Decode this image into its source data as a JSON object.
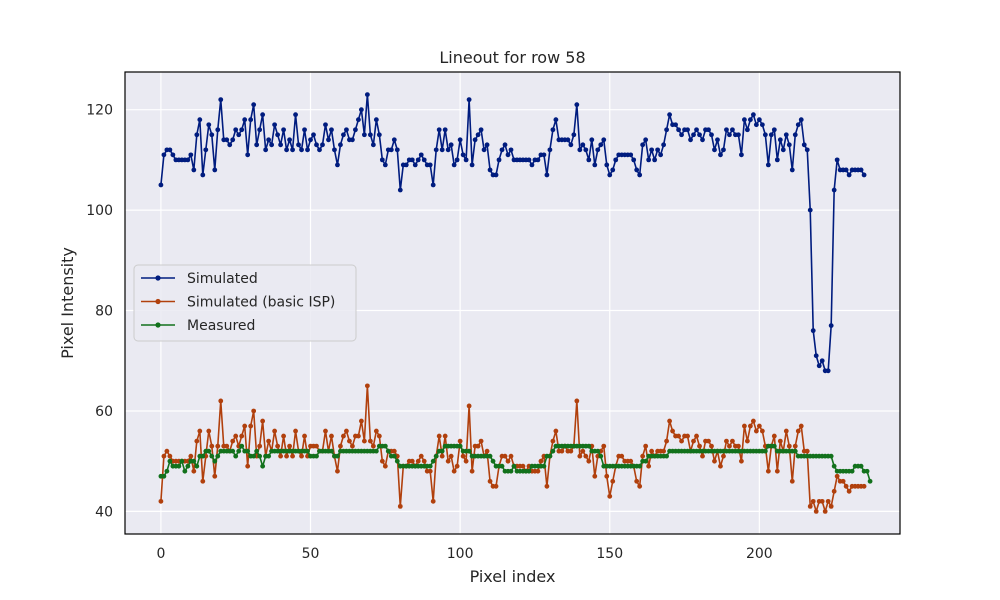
{
  "chart_data": {
    "type": "line",
    "title": "Lineout for row 58",
    "xlabel": "Pixel index",
    "ylabel": "Pixel Intensity",
    "xlim": [
      -12,
      247
    ],
    "ylim": [
      35.5,
      127.5
    ],
    "xticks": [
      0,
      50,
      100,
      150,
      200
    ],
    "yticks": [
      40,
      60,
      80,
      100,
      120
    ],
    "grid": true,
    "legend_position": "center-left",
    "series": [
      {
        "name": "Simulated",
        "color": "#001c7f",
        "values": [
          105,
          111,
          112,
          112,
          111,
          110,
          110,
          110,
          110,
          110,
          111,
          108,
          115,
          118,
          107,
          112,
          117,
          115,
          108,
          116,
          122,
          114,
          114,
          113,
          114,
          116,
          115,
          116,
          118,
          111,
          118,
          121,
          113,
          116,
          119,
          112,
          114,
          113,
          117,
          115,
          113,
          116,
          112,
          114,
          112,
          119,
          113,
          112,
          116,
          112,
          114,
          115,
          113,
          112,
          113,
          117,
          114,
          116,
          112,
          109,
          113,
          115,
          116,
          114,
          114,
          116,
          118,
          120,
          115,
          123,
          115,
          113,
          118,
          115,
          110,
          109,
          112,
          112,
          114,
          112,
          104,
          109,
          109,
          110,
          110,
          109,
          110,
          111,
          110,
          109,
          109,
          105,
          112,
          116,
          112,
          116,
          112,
          113,
          109,
          110,
          114,
          111,
          110,
          122,
          109,
          114,
          115,
          116,
          112,
          113,
          108,
          107,
          107,
          110,
          112,
          113,
          111,
          112,
          110,
          110,
          110,
          110,
          110,
          110,
          109,
          110,
          110,
          111,
          111,
          107,
          112,
          116,
          118,
          114,
          114,
          114,
          114,
          113,
          115,
          121,
          112,
          113,
          112,
          110,
          114,
          109,
          112,
          113,
          114,
          109,
          107,
          108,
          110,
          111,
          111,
          111,
          111,
          111,
          110,
          108,
          107,
          113,
          114,
          110,
          112,
          110,
          112,
          111,
          113,
          116,
          119,
          117,
          117,
          116,
          115,
          116,
          116,
          114,
          115,
          116,
          115,
          114,
          116,
          116,
          115,
          112,
          114,
          111,
          112,
          116,
          115,
          116,
          115,
          115,
          111,
          118,
          116,
          118,
          119,
          117,
          118,
          117,
          115,
          109,
          115,
          116,
          110,
          114,
          112,
          115,
          113,
          108,
          115,
          117,
          118,
          113,
          112,
          100,
          76,
          71,
          69,
          70,
          68,
          68,
          77,
          104,
          110,
          108,
          108,
          108,
          107,
          108,
          108,
          108,
          108,
          107
        ],
        "x_start": 0
      },
      {
        "name": "Simulated (basic ISP)",
        "color": "#b1400d",
        "values": [
          42,
          51,
          52,
          51,
          50,
          50,
          50,
          50,
          50,
          50,
          51,
          48,
          54,
          56,
          46,
          51,
          56,
          53,
          47,
          53,
          62,
          53,
          53,
          52,
          54,
          55,
          53,
          55,
          57,
          49,
          57,
          60,
          51,
          53,
          58,
          51,
          54,
          52,
          56,
          53,
          51,
          55,
          51,
          53,
          51,
          56,
          52,
          51,
          55,
          51,
          53,
          53,
          53,
          52,
          52,
          56,
          52,
          55,
          51,
          48,
          53,
          55,
          56,
          54,
          53,
          55,
          55,
          58,
          54,
          65,
          54,
          53,
          56,
          55,
          50,
          49,
          52,
          52,
          52,
          51,
          41,
          49,
          49,
          50,
          50,
          49,
          50,
          51,
          50,
          48,
          48,
          42,
          51,
          55,
          51,
          55,
          50,
          51,
          48,
          49,
          54,
          51,
          50,
          61,
          48,
          53,
          53,
          54,
          51,
          52,
          46,
          45,
          45,
          49,
          51,
          51,
          50,
          51,
          49,
          49,
          49,
          49,
          48,
          49,
          48,
          48,
          48,
          50,
          51,
          45,
          51,
          54,
          56,
          52,
          52,
          53,
          52,
          52,
          53,
          62,
          51,
          52,
          51,
          50,
          53,
          47,
          51,
          52,
          53,
          47,
          43,
          46,
          49,
          51,
          51,
          50,
          50,
          50,
          49,
          46,
          45,
          51,
          53,
          49,
          52,
          51,
          52,
          52,
          52,
          54,
          58,
          56,
          55,
          55,
          54,
          55,
          55,
          52,
          54,
          55,
          53,
          51,
          54,
          54,
          53,
          50,
          52,
          49,
          51,
          54,
          53,
          54,
          53,
          53,
          50,
          57,
          54,
          57,
          58,
          56,
          57,
          56,
          53,
          48,
          53,
          55,
          48,
          54,
          52,
          56,
          53,
          46,
          53,
          56,
          57,
          52,
          52,
          41,
          42,
          40,
          42,
          42,
          40,
          42,
          41,
          44,
          47,
          46,
          46,
          45,
          44,
          45,
          45,
          45,
          45,
          45
        ],
        "x_start": 0
      },
      {
        "name": "Measured",
        "color": "#12711c",
        "values": [
          47,
          47,
          48,
          50,
          49,
          49,
          49,
          50,
          48,
          49,
          50,
          50,
          49,
          51,
          51,
          52,
          52,
          51,
          50,
          51,
          52,
          52,
          52,
          52,
          52,
          51,
          52,
          53,
          52,
          52,
          51,
          51,
          52,
          51,
          49,
          51,
          51,
          52,
          52,
          52,
          52,
          52,
          52,
          52,
          52,
          52,
          52,
          52,
          52,
          52,
          51,
          51,
          51,
          52,
          52,
          52,
          52,
          52,
          51,
          51,
          52,
          52,
          52,
          52,
          52,
          52,
          52,
          52,
          52,
          52,
          52,
          52,
          52,
          53,
          53,
          53,
          52,
          51,
          51,
          50,
          49,
          49,
          49,
          49,
          49,
          49,
          49,
          49,
          49,
          49,
          49,
          50,
          51,
          52,
          52,
          53,
          53,
          53,
          53,
          53,
          53,
          52,
          52,
          52,
          51,
          51,
          51,
          51,
          51,
          51,
          51,
          50,
          49,
          49,
          49,
          48,
          48,
          48,
          49,
          48,
          48,
          48,
          48,
          48,
          49,
          49,
          49,
          49,
          49,
          51,
          51,
          52,
          53,
          53,
          53,
          53,
          53,
          53,
          53,
          53,
          53,
          53,
          53,
          53,
          52,
          52,
          52,
          51,
          49,
          49,
          49,
          49,
          49,
          49,
          49,
          49,
          49,
          49,
          49,
          49,
          49,
          50,
          50,
          51,
          51,
          51,
          51,
          51,
          51,
          51,
          52,
          52,
          52,
          52,
          52,
          52,
          52,
          52,
          52,
          52,
          52,
          52,
          52,
          52,
          52,
          52,
          52,
          52,
          52,
          52,
          52,
          52,
          52,
          52,
          52,
          52,
          52,
          52,
          52,
          52,
          52,
          52,
          52,
          53,
          53,
          53,
          52,
          52,
          52,
          52,
          52,
          52,
          52,
          51,
          51,
          51,
          51,
          51,
          51,
          51,
          51,
          51,
          51,
          51,
          51,
          49,
          48,
          48,
          48,
          48,
          48,
          48,
          49,
          49,
          49,
          48,
          48,
          46
        ],
        "x_start": 0
      }
    ]
  }
}
